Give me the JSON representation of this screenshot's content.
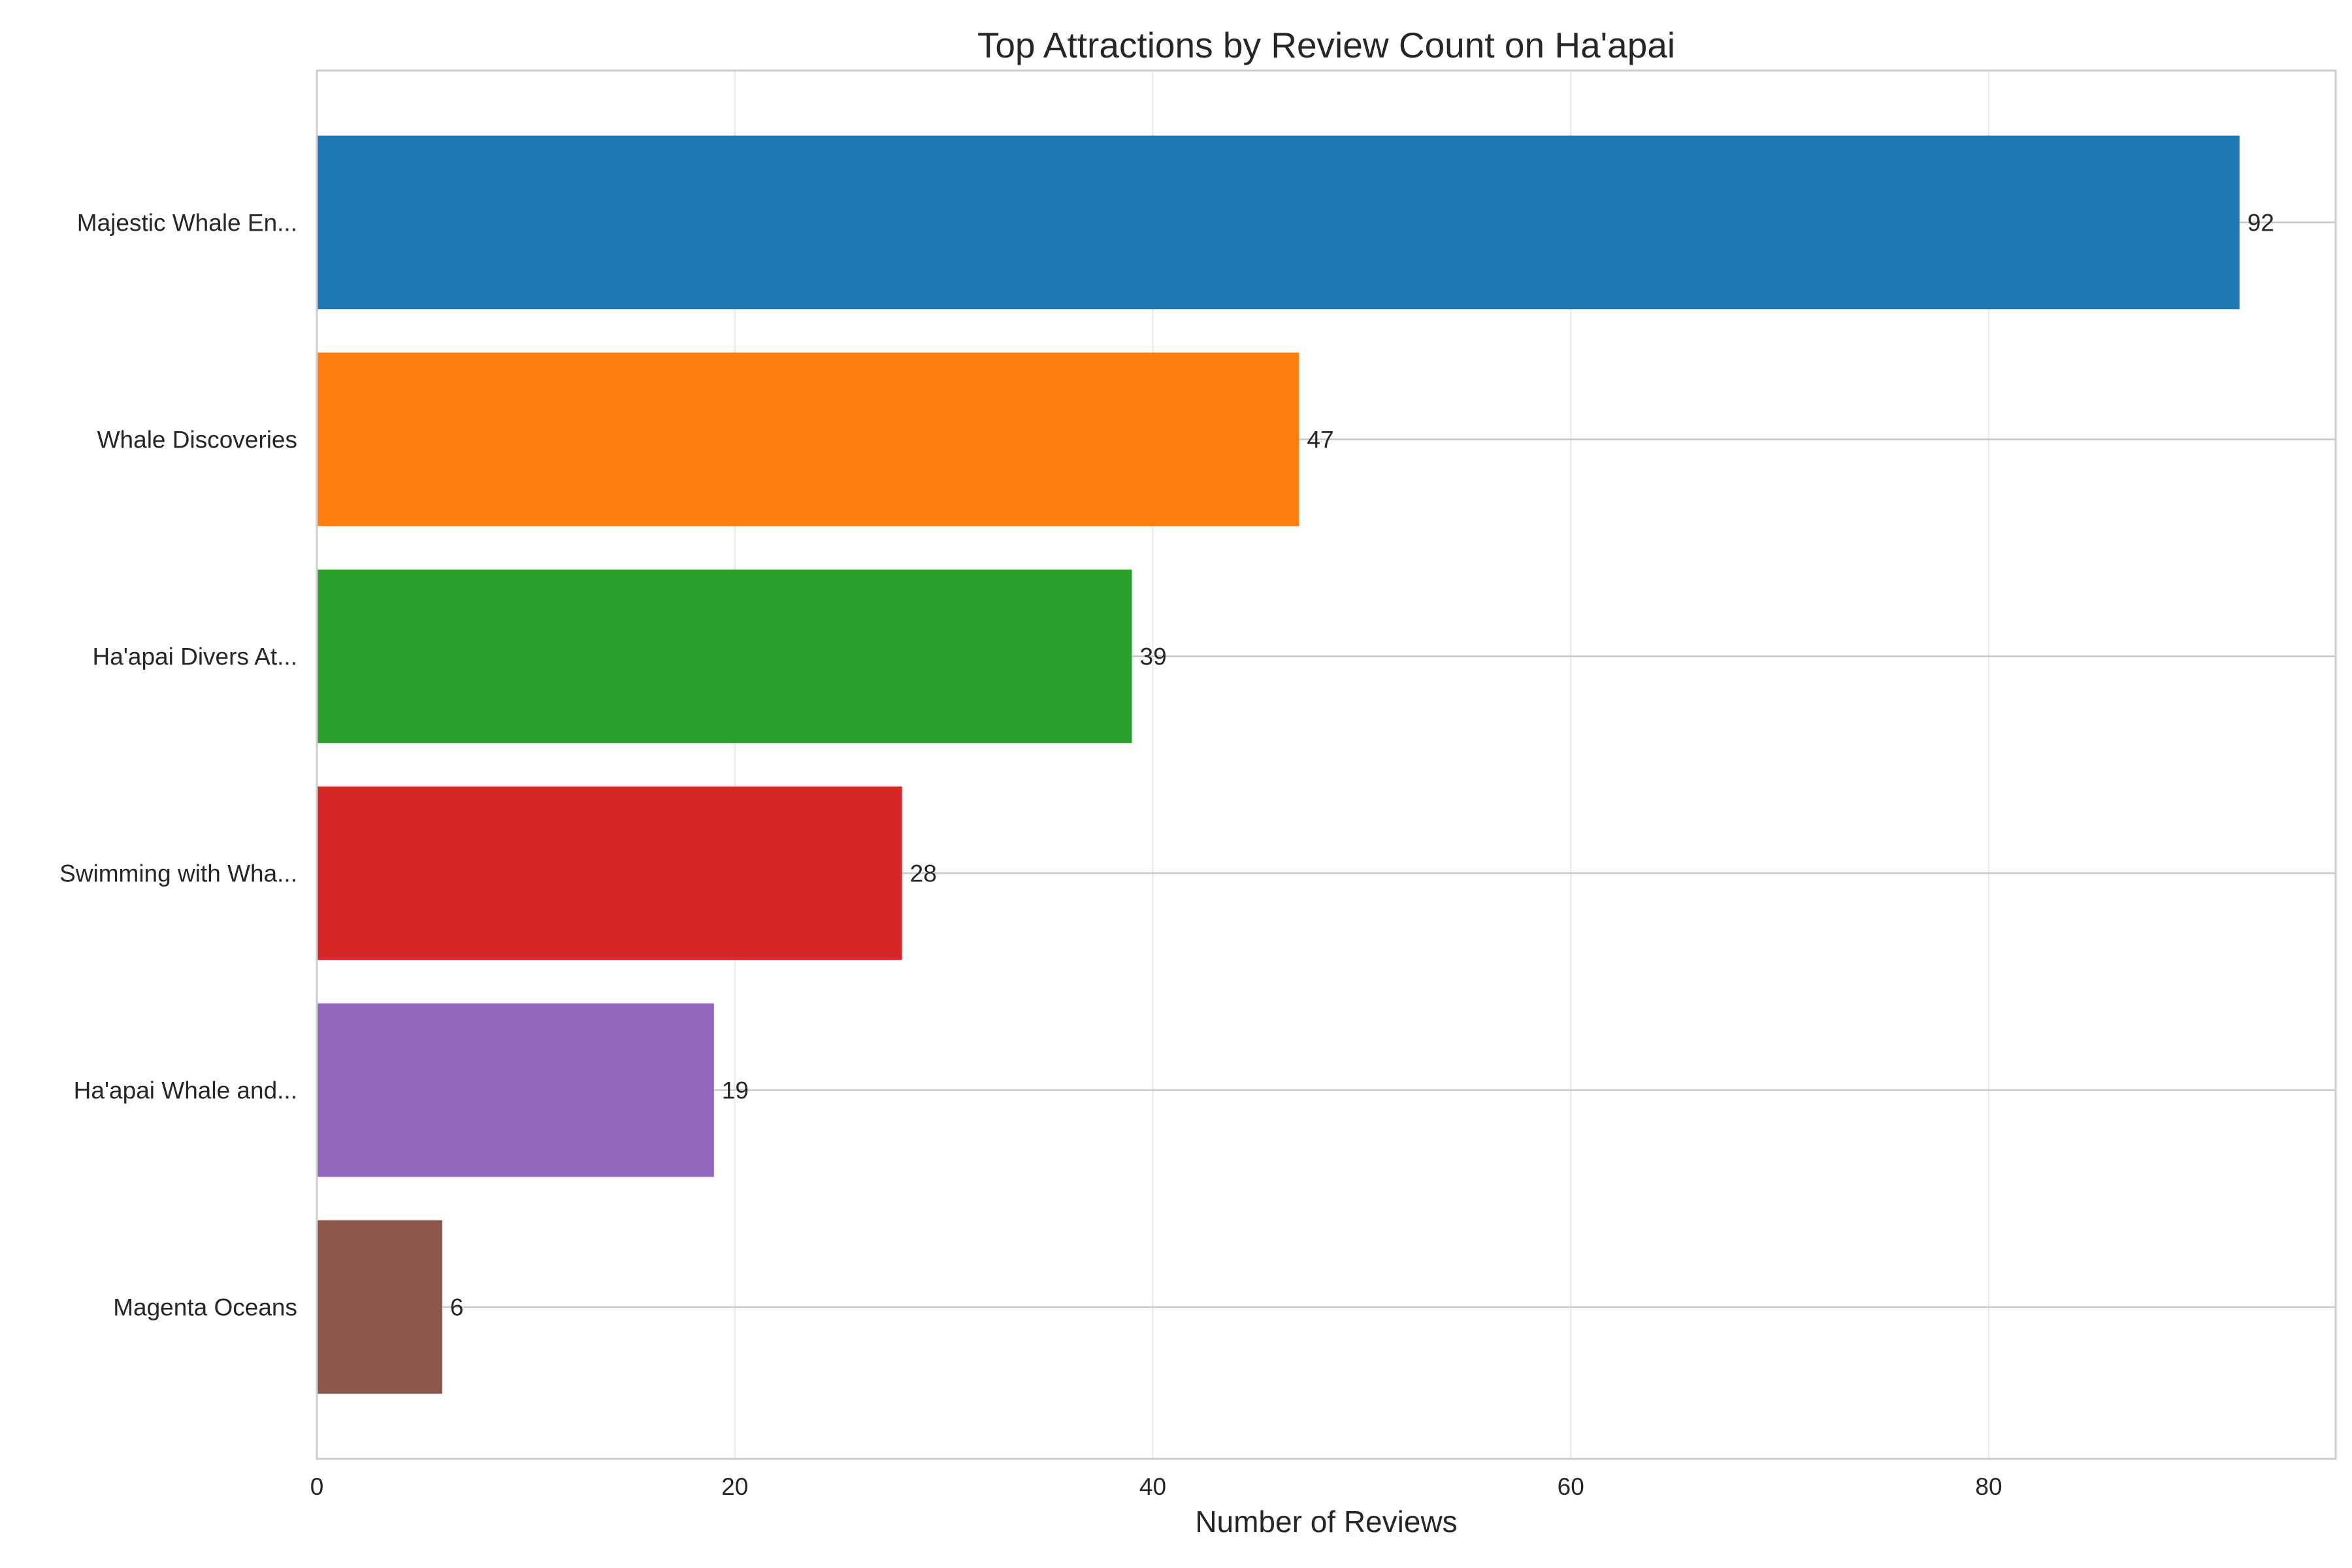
{
  "chart_data": {
    "type": "bar",
    "orientation": "horizontal",
    "title": "Top Attractions by Review Count on Ha'apai",
    "xlabel": "Number of Reviews",
    "ylabel": "",
    "categories": [
      "Majestic Whale En...",
      "Whale Discoveries",
      "Ha'apai Divers At...",
      "Swimming with Wha...",
      "Ha'apai Whale and...",
      "Magenta Oceans"
    ],
    "values": [
      92,
      47,
      39,
      28,
      19,
      6
    ],
    "colors": [
      "#1f77b4",
      "#ff7f0e",
      "#2ca02c",
      "#d62728",
      "#9467bd",
      "#8c564b"
    ],
    "xlim": [
      0,
      96.6
    ],
    "xticks": [
      0,
      20,
      40,
      60,
      80
    ],
    "xtick_labels": [
      "0",
      "20",
      "40",
      "60",
      "80"
    ],
    "data_labels": [
      "92",
      "47",
      "39",
      "28",
      "19",
      "6"
    ],
    "grid": true,
    "legend": "none"
  }
}
